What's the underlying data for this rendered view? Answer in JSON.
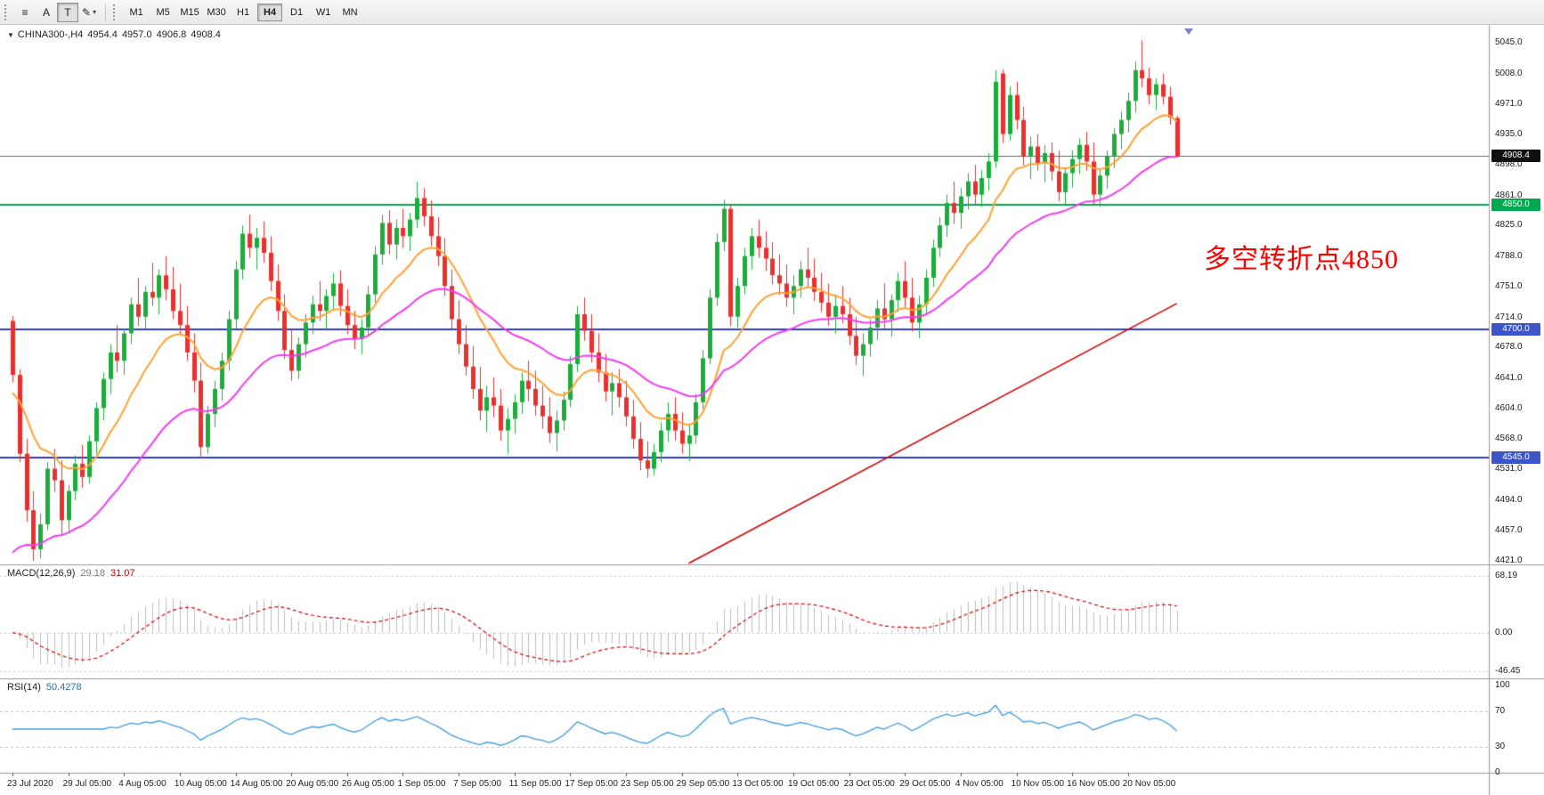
{
  "toolbar": {
    "tools": [
      {
        "id": "chart-list",
        "glyph": "≡"
      },
      {
        "id": "text-label",
        "glyph": "A"
      },
      {
        "id": "template",
        "glyph": "T",
        "pressed": true
      },
      {
        "id": "draw",
        "glyph": "✎",
        "dropdown": true
      }
    ],
    "timeframes": [
      "M1",
      "M5",
      "M15",
      "M30",
      "H1",
      "H4",
      "D1",
      "W1",
      "MN"
    ],
    "active_timeframe": "H4"
  },
  "header": {
    "dropdown_icon": "▼",
    "symbol_period": "CHINA300-,H4",
    "open": "4954.4",
    "high": "4957.0",
    "low": "4906.8",
    "close": "4908.4"
  },
  "panes": {
    "macd": {
      "title": "MACD(12,26,9)",
      "value_main": "29.18",
      "value_signal": "31.07",
      "axis_labels": [
        "68.19",
        "0.00",
        "-46.45"
      ],
      "fast": 12,
      "slow": 26,
      "signal": 9,
      "histogram_color": "#BDBDBD",
      "signal_color": "#D40000"
    },
    "rsi": {
      "title": "RSI(14)",
      "value": "50.4278",
      "axis_labels": [
        "100",
        "70",
        "30",
        "0"
      ],
      "levels": [
        70,
        30
      ],
      "period": 14,
      "line_color": "#3E9ADE"
    }
  },
  "chart_data": {
    "type": "candlestick",
    "symbol": "CHINA300-",
    "period": "H4",
    "up_color": "#1CAC3C",
    "down_color": "#E8312F",
    "price_axis": [
      "5045.0",
      "5008.0",
      "4971.0",
      "4935.0",
      "4898.0",
      "4861.0",
      "4825.0",
      "4788.0",
      "4751.0",
      "4714.0",
      "4678.0",
      "4641.0",
      "4604.0",
      "4568.0",
      "4531.0",
      "4494.0",
      "4457.0",
      "4421.0"
    ],
    "time_labels": [
      "23 Jul 2020",
      "29 Jul 05:00",
      "4 Aug 05:00",
      "10 Aug 05:00",
      "14 Aug 05:00",
      "20 Aug 05:00",
      "26 Aug 05:00",
      "1 Sep 05:00",
      "7 Sep 05:00",
      "11 Sep 05:00",
      "17 Sep 05:00",
      "23 Sep 05:00",
      "29 Sep 05:00",
      "13 Oct 05:00",
      "19 Oct 05:00",
      "23 Oct 05:00",
      "29 Oct 05:00",
      "4 Nov 05:00",
      "10 Nov 05:00",
      "16 Nov 05:00",
      "20 Nov 05:00"
    ],
    "horizontal_lines": [
      {
        "label": "4908.4",
        "price": 4908.4,
        "line_color": "#4D6F6F",
        "box_color": "#101010",
        "width": 1
      },
      {
        "label": "4850.0",
        "price": 4850.0,
        "line_color": "#00A94F",
        "box_color": "#00A94F",
        "width": 2
      },
      {
        "label": "4700.0",
        "price": 4700.0,
        "line_color": "#2E3FBC",
        "box_color": "#3C55C8",
        "width": 2
      },
      {
        "label": "4545.0",
        "price": 4545.0,
        "line_color": "#2E3FBC",
        "box_color": "#3C55C8",
        "width": 2
      }
    ],
    "trendline": {
      "from_bar": 97,
      "from_price": 4418,
      "to_bar": 167,
      "to_price": 4731,
      "color": "#D40000"
    },
    "moving_averages": [
      {
        "name": "ma-fast",
        "color": "#FFA133",
        "period": 13,
        "seed": 4620,
        "width": 2
      },
      {
        "name": "ma-slow",
        "color": "#F23CF2",
        "period": 34,
        "seed": 4418,
        "width": 2
      }
    ],
    "annotation": {
      "text": "多空转折点4850",
      "color": "#FF0000"
    },
    "ohlc": [
      [
        4710,
        4716,
        4636,
        4645
      ],
      [
        4645,
        4652,
        4540,
        4550
      ],
      [
        4550,
        4568,
        4468,
        4482
      ],
      [
        4482,
        4505,
        4421,
        4435
      ],
      [
        4435,
        4478,
        4424,
        4465
      ],
      [
        4465,
        4540,
        4458,
        4532
      ],
      [
        4532,
        4556,
        4504,
        4518
      ],
      [
        4518,
        4542,
        4452,
        4470
      ],
      [
        4470,
        4512,
        4455,
        4505
      ],
      [
        4505,
        4548,
        4494,
        4538
      ],
      [
        4538,
        4561,
        4509,
        4522
      ],
      [
        4522,
        4572,
        4514,
        4565
      ],
      [
        4565,
        4612,
        4550,
        4605
      ],
      [
        4605,
        4648,
        4590,
        4640
      ],
      [
        4640,
        4682,
        4622,
        4672
      ],
      [
        4672,
        4705,
        4648,
        4662
      ],
      [
        4662,
        4701,
        4645,
        4695
      ],
      [
        4695,
        4738,
        4682,
        4730
      ],
      [
        4730,
        4762,
        4704,
        4715
      ],
      [
        4715,
        4752,
        4700,
        4745
      ],
      [
        4745,
        4780,
        4728,
        4738
      ],
      [
        4738,
        4772,
        4718,
        4765
      ],
      [
        4765,
        4788,
        4735,
        4748
      ],
      [
        4748,
        4775,
        4712,
        4722
      ],
      [
        4722,
        4755,
        4694,
        4705
      ],
      [
        4705,
        4728,
        4662,
        4672
      ],
      [
        4672,
        4695,
        4624,
        4638
      ],
      [
        4638,
        4660,
        4545,
        4558
      ],
      [
        4558,
        4608,
        4550,
        4598
      ],
      [
        4598,
        4638,
        4582,
        4628
      ],
      [
        4628,
        4672,
        4614,
        4662
      ],
      [
        4662,
        4722,
        4650,
        4712
      ],
      [
        4712,
        4782,
        4700,
        4772
      ],
      [
        4772,
        4825,
        4760,
        4815
      ],
      [
        4815,
        4838,
        4786,
        4798
      ],
      [
        4798,
        4822,
        4772,
        4810
      ],
      [
        4810,
        4830,
        4780,
        4792
      ],
      [
        4792,
        4812,
        4746,
        4758
      ],
      [
        4758,
        4778,
        4710,
        4722
      ],
      [
        4722,
        4742,
        4664,
        4675
      ],
      [
        4675,
        4700,
        4638,
        4650
      ],
      [
        4650,
        4690,
        4640,
        4682
      ],
      [
        4682,
        4718,
        4666,
        4708
      ],
      [
        4708,
        4740,
        4694,
        4730
      ],
      [
        4730,
        4758,
        4710,
        4722
      ],
      [
        4722,
        4748,
        4700,
        4740
      ],
      [
        4740,
        4768,
        4722,
        4755
      ],
      [
        4755,
        4771,
        4716,
        4728
      ],
      [
        4728,
        4748,
        4694,
        4705
      ],
      [
        4705,
        4722,
        4676,
        4688
      ],
      [
        4688,
        4712,
        4670,
        4702
      ],
      [
        4702,
        4752,
        4692,
        4742
      ],
      [
        4742,
        4800,
        4732,
        4790
      ],
      [
        4790,
        4838,
        4778,
        4828
      ],
      [
        4828,
        4843,
        4790,
        4802
      ],
      [
        4802,
        4832,
        4784,
        4822
      ],
      [
        4822,
        4845,
        4798,
        4812
      ],
      [
        4812,
        4840,
        4794,
        4832
      ],
      [
        4832,
        4878,
        4822,
        4858
      ],
      [
        4858,
        4870,
        4824,
        4836
      ],
      [
        4836,
        4855,
        4800,
        4812
      ],
      [
        4812,
        4835,
        4776,
        4788
      ],
      [
        4788,
        4810,
        4740,
        4752
      ],
      [
        4752,
        4772,
        4700,
        4712
      ],
      [
        4712,
        4735,
        4670,
        4682
      ],
      [
        4682,
        4705,
        4644,
        4655
      ],
      [
        4655,
        4680,
        4616,
        4628
      ],
      [
        4628,
        4655,
        4590,
        4602
      ],
      [
        4602,
        4632,
        4576,
        4618
      ],
      [
        4618,
        4642,
        4594,
        4608
      ],
      [
        4608,
        4628,
        4566,
        4578
      ],
      [
        4578,
        4605,
        4550,
        4592
      ],
      [
        4592,
        4622,
        4574,
        4612
      ],
      [
        4612,
        4648,
        4598,
        4638
      ],
      [
        4638,
        4662,
        4613,
        4628
      ],
      [
        4628,
        4650,
        4596,
        4608
      ],
      [
        4608,
        4632,
        4580,
        4595
      ],
      [
        4595,
        4618,
        4563,
        4575
      ],
      [
        4575,
        4602,
        4553,
        4590
      ],
      [
        4590,
        4625,
        4578,
        4615
      ],
      [
        4615,
        4668,
        4606,
        4658
      ],
      [
        4658,
        4728,
        4648,
        4718
      ],
      [
        4718,
        4738,
        4686,
        4698
      ],
      [
        4698,
        4718,
        4660,
        4672
      ],
      [
        4672,
        4695,
        4636,
        4648
      ],
      [
        4648,
        4670,
        4613,
        4625
      ],
      [
        4625,
        4648,
        4596,
        4635
      ],
      [
        4635,
        4652,
        4606,
        4618
      ],
      [
        4618,
        4638,
        4583,
        4595
      ],
      [
        4595,
        4615,
        4556,
        4568
      ],
      [
        4568,
        4588,
        4530,
        4542
      ],
      [
        4542,
        4565,
        4521,
        4532
      ],
      [
        4532,
        4562,
        4524,
        4552
      ],
      [
        4552,
        4588,
        4540,
        4578
      ],
      [
        4578,
        4612,
        4564,
        4598
      ],
      [
        4598,
        4618,
        4566,
        4578
      ],
      [
        4578,
        4600,
        4550,
        4562
      ],
      [
        4562,
        4585,
        4541,
        4572
      ],
      [
        4572,
        4622,
        4562,
        4612
      ],
      [
        4612,
        4675,
        4604,
        4665
      ],
      [
        4665,
        4748,
        4658,
        4738
      ],
      [
        4738,
        4815,
        4728,
        4805
      ],
      [
        4805,
        4856,
        4794,
        4845
      ],
      [
        4845,
        4850,
        4704,
        4715
      ],
      [
        4715,
        4762,
        4702,
        4752
      ],
      [
        4752,
        4798,
        4742,
        4788
      ],
      [
        4788,
        4822,
        4772,
        4812
      ],
      [
        4812,
        4832,
        4786,
        4798
      ],
      [
        4798,
        4818,
        4770,
        4785
      ],
      [
        4785,
        4805,
        4754,
        4765
      ],
      [
        4765,
        4790,
        4741,
        4755
      ],
      [
        4755,
        4778,
        4727,
        4738
      ],
      [
        4738,
        4765,
        4718,
        4752
      ],
      [
        4752,
        4782,
        4738,
        4772
      ],
      [
        4772,
        4798,
        4750,
        4762
      ],
      [
        4762,
        4785,
        4734,
        4745
      ],
      [
        4745,
        4768,
        4721,
        4732
      ],
      [
        4732,
        4755,
        4704,
        4715
      ],
      [
        4715,
        4742,
        4695,
        4728
      ],
      [
        4728,
        4752,
        4707,
        4718
      ],
      [
        4718,
        4738,
        4681,
        4692
      ],
      [
        4692,
        4715,
        4657,
        4668
      ],
      [
        4668,
        4695,
        4644,
        4682
      ],
      [
        4682,
        4712,
        4667,
        4702
      ],
      [
        4702,
        4735,
        4687,
        4725
      ],
      [
        4725,
        4755,
        4701,
        4712
      ],
      [
        4712,
        4742,
        4691,
        4735
      ],
      [
        4735,
        4768,
        4721,
        4758
      ],
      [
        4758,
        4782,
        4727,
        4738
      ],
      [
        4738,
        4762,
        4697,
        4708
      ],
      [
        4708,
        4740,
        4689,
        4730
      ],
      [
        4730,
        4772,
        4717,
        4762
      ],
      [
        4762,
        4808,
        4751,
        4798
      ],
      [
        4798,
        4835,
        4787,
        4825
      ],
      [
        4825,
        4862,
        4811,
        4852
      ],
      [
        4852,
        4878,
        4827,
        4840
      ],
      [
        4840,
        4870,
        4821,
        4860
      ],
      [
        4860,
        4888,
        4844,
        4878
      ],
      [
        4878,
        4898,
        4851,
        4862
      ],
      [
        4862,
        4892,
        4847,
        4882
      ],
      [
        4882,
        4912,
        4867,
        4902
      ],
      [
        4902,
        5012,
        4894,
        4998
      ],
      [
        5008,
        5013,
        4924,
        4935
      ],
      [
        4935,
        4992,
        4927,
        4982
      ],
      [
        4982,
        4998,
        4941,
        4952
      ],
      [
        4952,
        4968,
        4897,
        4908
      ],
      [
        4908,
        4932,
        4881,
        4920
      ],
      [
        4920,
        4935,
        4891,
        4900
      ],
      [
        4900,
        4922,
        4877,
        4912
      ],
      [
        4912,
        4925,
        4879,
        4890
      ],
      [
        4890,
        4915,
        4854,
        4865
      ],
      [
        4865,
        4895,
        4849,
        4888
      ],
      [
        4888,
        4915,
        4871,
        4905
      ],
      [
        4905,
        4930,
        4887,
        4922
      ],
      [
        4922,
        4938,
        4891,
        4902
      ],
      [
        4902,
        4925,
        4851,
        4862
      ],
      [
        4862,
        4892,
        4847,
        4885
      ],
      [
        4885,
        4915,
        4869,
        4908
      ],
      [
        4908,
        4942,
        4894,
        4935
      ],
      [
        4935,
        4962,
        4917,
        4952
      ],
      [
        4952,
        4985,
        4937,
        4975
      ],
      [
        4975,
        5022,
        4961,
        5012
      ],
      [
        5012,
        5048,
        4991,
        5002
      ],
      [
        5002,
        5015,
        4971,
        4982
      ],
      [
        4982,
        5002,
        4964,
        4995
      ],
      [
        4995,
        5008,
        4971,
        4980
      ],
      [
        4980,
        4992,
        4946,
        4955
      ],
      [
        4954.4,
        4957.0,
        4906.8,
        4908.4
      ]
    ]
  }
}
